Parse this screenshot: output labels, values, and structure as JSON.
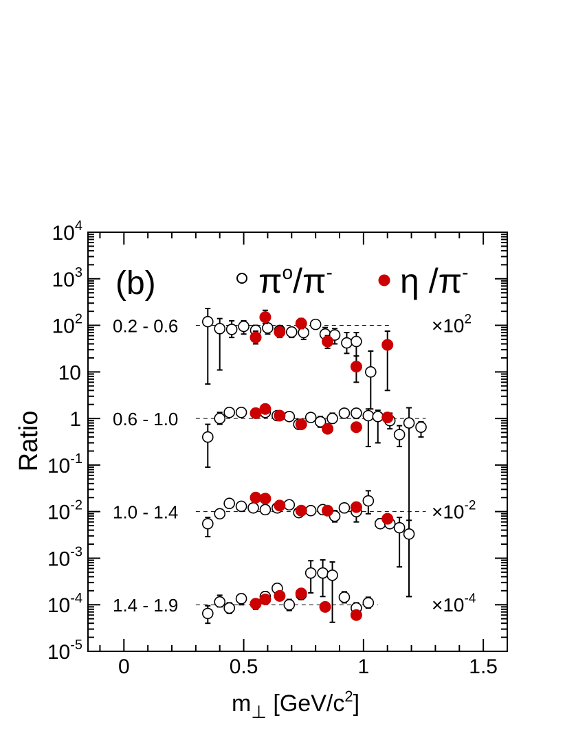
{
  "chart_data": {
    "type": "scatter",
    "panel_label": "(b)",
    "xlabel": {
      "main": "m",
      "sub": "⊥",
      "unit_prefix": "[GeV/c",
      "unit_sup": "2",
      "unit_suffix": "]"
    },
    "ylabel": "Ratio",
    "xlim": [
      -0.15,
      1.6
    ],
    "ylim_log10": [
      -5,
      4
    ],
    "yscale": "log",
    "x_ticks": [
      {
        "value": 0,
        "label": "0"
      },
      {
        "value": 0.5,
        "label": "0.5"
      },
      {
        "value": 1,
        "label": "1"
      },
      {
        "value": 1.5,
        "label": "1.5"
      }
    ],
    "y_ticks": [
      {
        "exp": 4,
        "base": "10",
        "sup": "4"
      },
      {
        "exp": 3,
        "base": "10",
        "sup": "3"
      },
      {
        "exp": 2,
        "base": "10",
        "sup": "2"
      },
      {
        "exp": 1,
        "base": "10",
        "sup": ""
      },
      {
        "exp": 0,
        "base": "1",
        "sup": ""
      },
      {
        "exp": -1,
        "base": "10",
        "sup": "-1"
      },
      {
        "exp": -2,
        "base": "10",
        "sup": "-2"
      },
      {
        "exp": -3,
        "base": "10",
        "sup": "-3"
      },
      {
        "exp": -4,
        "base": "10",
        "sup": "-4"
      },
      {
        "exp": -5,
        "base": "10",
        "sup": "-5"
      }
    ],
    "legend": {
      "position": "top",
      "entries": [
        {
          "name": "pi0",
          "base": "π",
          "sup1": "o",
          "mid": "/π",
          "sup2": "-",
          "marker": "open-circle",
          "color": "#000000"
        },
        {
          "name": "eta",
          "base": "η",
          "sup1": "",
          "mid": " /π",
          "sup2": "-",
          "marker": "filled-circle",
          "color": "#cc0000"
        }
      ]
    },
    "bins": [
      {
        "label": "0.2 - 0.6",
        "scale_label": "×10",
        "scale_sup": "2",
        "ref_exp": 2,
        "line_x": [
          0.3,
          1.12
        ]
      },
      {
        "label": "0.6 - 1.0",
        "scale_label": "",
        "scale_sup": "",
        "ref_exp": 0,
        "line_x": [
          0.3,
          1.26
        ]
      },
      {
        "label": "1.0 - 1.4",
        "scale_label": "×10",
        "scale_sup": "-2",
        "ref_exp": -2,
        "line_x": [
          0.3,
          1.26
        ]
      },
      {
        "label": "1.4 - 1.9",
        "scale_label": "×10",
        "scale_sup": "-4",
        "ref_exp": -4,
        "line_x": [
          0.3,
          1.06
        ]
      }
    ],
    "series": [
      {
        "name": "π0/π- (0.2-0.6)",
        "marker": "open",
        "points": [
          [
            0.35,
            120,
            230,
            5.5
          ],
          [
            0.4,
            85,
            140,
            11
          ],
          [
            0.45,
            82,
            125,
            55
          ],
          [
            0.5,
            95,
            125,
            65
          ],
          [
            0.55,
            78,
            100,
            55
          ],
          [
            0.6,
            88,
            110,
            65
          ],
          [
            0.65,
            78,
            95,
            60
          ],
          [
            0.7,
            72,
            90,
            55
          ],
          [
            0.75,
            70,
            100,
            50
          ],
          [
            0.8,
            105,
            120,
            90
          ],
          [
            0.84,
            65,
            90,
            45
          ],
          [
            0.88,
            62,
            85,
            40
          ],
          [
            0.93,
            42,
            70,
            25
          ],
          [
            0.97,
            45,
            70,
            13
          ],
          [
            1.03,
            10,
            28,
            1.6
          ]
        ]
      },
      {
        "name": "η/π- (0.2-0.6)",
        "marker": "filled",
        "points": [
          [
            0.55,
            55,
            75,
            40
          ],
          [
            0.59,
            150,
            210,
            110
          ],
          [
            0.65,
            72,
            95,
            55
          ],
          [
            0.74,
            110,
            140,
            85
          ],
          [
            0.85,
            45,
            60,
            32
          ],
          [
            0.97,
            13,
            22,
            6
          ],
          [
            1.1,
            38,
            75,
            4
          ]
        ]
      },
      {
        "name": "π0/π- (0.6-1.0)",
        "marker": "open",
        "points": [
          [
            0.35,
            0.4,
            0.75,
            0.09
          ],
          [
            0.4,
            1.0,
            1.35,
            0.75
          ],
          [
            0.44,
            1.35,
            1.55,
            1.2
          ],
          [
            0.49,
            1.35,
            1.55,
            1.2
          ],
          [
            0.55,
            1.3,
            1.5,
            1.15
          ],
          [
            0.59,
            1.35,
            1.55,
            1.2
          ],
          [
            0.64,
            1.15,
            1.35,
            1.0
          ],
          [
            0.69,
            1.1,
            1.3,
            0.95
          ],
          [
            0.73,
            0.75,
            0.9,
            0.6
          ],
          [
            0.78,
            1.05,
            1.25,
            0.9
          ],
          [
            0.82,
            0.85,
            1.1,
            0.65
          ],
          [
            0.87,
            1.0,
            1.3,
            0.8
          ],
          [
            0.92,
            1.3,
            1.6,
            1.05
          ],
          [
            0.97,
            1.3,
            1.6,
            1.0
          ],
          [
            1.02,
            1.15,
            1.6,
            0.25
          ],
          [
            1.06,
            1.1,
            1.5,
            0.3
          ],
          [
            1.11,
            0.9,
            1.3,
            0.6
          ],
          [
            1.15,
            0.45,
            0.7,
            0.25
          ],
          [
            1.19,
            0.8,
            1.7,
            0.00015
          ],
          [
            1.24,
            0.65,
            0.85,
            0.4
          ]
        ]
      },
      {
        "name": "η/π- (0.6-1.0)",
        "marker": "filled",
        "points": [
          [
            0.55,
            1.3,
            1.45,
            1.15
          ],
          [
            0.59,
            1.6,
            1.8,
            1.4
          ],
          [
            0.65,
            1.15,
            1.3,
            1.0
          ],
          [
            0.74,
            0.75,
            0.88,
            0.62
          ],
          [
            0.85,
            0.6,
            0.7,
            0.5
          ],
          [
            0.97,
            0.65,
            0.78,
            0.54
          ],
          [
            1.1,
            1.05,
            1.3,
            0.85
          ]
        ]
      },
      {
        "name": "π0/π- (1.0-1.4)",
        "marker": "open",
        "points": [
          [
            0.35,
            0.0055,
            0.0075,
            0.0029
          ],
          [
            0.4,
            0.009,
            0.011,
            0.0075
          ],
          [
            0.44,
            0.015,
            0.017,
            0.013
          ],
          [
            0.49,
            0.013,
            0.015,
            0.011
          ],
          [
            0.54,
            0.012,
            0.014,
            0.0105
          ],
          [
            0.59,
            0.011,
            0.013,
            0.0095
          ],
          [
            0.64,
            0.012,
            0.014,
            0.0105
          ],
          [
            0.69,
            0.014,
            0.016,
            0.012
          ],
          [
            0.73,
            0.0095,
            0.011,
            0.008
          ],
          [
            0.78,
            0.0105,
            0.012,
            0.009
          ],
          [
            0.83,
            0.011,
            0.0125,
            0.0095
          ],
          [
            0.88,
            0.008,
            0.0105,
            0.006
          ],
          [
            0.92,
            0.012,
            0.015,
            0.0095
          ],
          [
            0.97,
            0.01,
            0.014,
            0.006
          ],
          [
            1.02,
            0.017,
            0.028,
            0.009
          ],
          [
            1.07,
            0.0055,
            0.007,
            0.0045
          ],
          [
            1.11,
            0.0055,
            0.0065,
            0.0045
          ],
          [
            1.15,
            0.0045,
            0.0075,
            0.00065
          ],
          [
            1.19,
            0.0033,
            0.0065,
            0.00015
          ]
        ]
      },
      {
        "name": "η/π- (1.0-1.4)",
        "marker": "filled",
        "points": [
          [
            0.55,
            0.02,
            0.024,
            0.017
          ],
          [
            0.59,
            0.019,
            0.022,
            0.016
          ],
          [
            0.65,
            0.0135,
            0.016,
            0.0115
          ],
          [
            0.74,
            0.0105,
            0.012,
            0.009
          ],
          [
            0.85,
            0.0105,
            0.012,
            0.009
          ],
          [
            0.97,
            0.0125,
            0.0145,
            0.0105
          ],
          [
            1.1,
            0.007,
            0.0082,
            0.0058
          ]
        ]
      },
      {
        "name": "π0/π- (1.4-1.9)",
        "marker": "open",
        "points": [
          [
            0.35,
            6.5e-05,
            9.5e-05,
            4e-05
          ],
          [
            0.4,
            0.000115,
            0.00016,
            9e-05
          ],
          [
            0.44,
            8.5e-05,
            0.00011,
            6.5e-05
          ],
          [
            0.49,
            0.000135,
            0.00017,
            0.0001
          ],
          [
            0.55,
            0.000105,
            0.00013,
            8e-05
          ],
          [
            0.59,
            0.00015,
            0.00019,
            0.00012
          ],
          [
            0.64,
            0.000225,
            0.00028,
            0.00018
          ],
          [
            0.69,
            0.0001,
            0.00013,
            7.5e-05
          ],
          [
            0.74,
            0.000165,
            0.0002,
            0.00013
          ],
          [
            0.78,
            0.00048,
            0.00088,
            0.00018
          ],
          [
            0.83,
            0.00048,
            0.00092,
            0.00015
          ],
          [
            0.87,
            0.00043,
            0.00083,
            4.2e-05
          ],
          [
            0.92,
            0.000145,
            0.00019,
            0.00011
          ],
          [
            0.97,
            8.5e-05,
            0.00011,
            6.5e-05
          ],
          [
            1.02,
            0.00011,
            0.000145,
            8.5e-05
          ]
        ]
      },
      {
        "name": "η/π- (1.4-1.9)",
        "marker": "filled",
        "points": [
          [
            0.55,
            0.000105,
            0.000125,
            8.8e-05
          ],
          [
            0.59,
            0.00013,
            0.000155,
            0.00011
          ],
          [
            0.65,
            0.000155,
            0.00018,
            0.00013
          ],
          [
            0.74,
            0.000175,
            0.0002,
            0.00015
          ],
          [
            0.84,
            9e-05,
            0.000105,
            7.7e-05
          ],
          [
            0.97,
            6e-05,
            7e-05,
            5.1e-05
          ]
        ]
      }
    ]
  }
}
